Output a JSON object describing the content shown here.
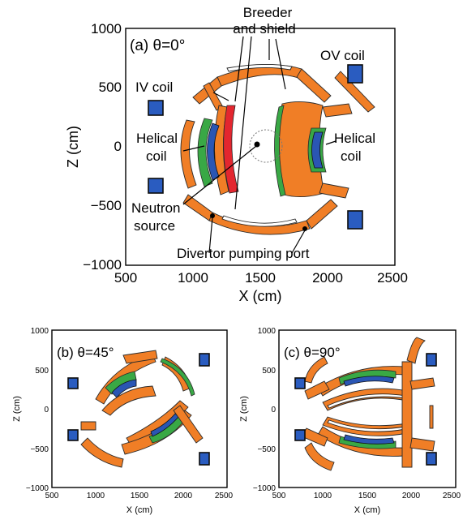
{
  "panels": [
    {
      "title": "(a) θ=0°",
      "xlabel": "X (cm)",
      "ylabel": "Z (cm)",
      "xticks": [
        "500",
        "1000",
        "1500",
        "2000",
        "2500"
      ],
      "yticks": [
        "1000",
        "500",
        "0",
        "−500",
        "−1000"
      ]
    },
    {
      "title": "(b) θ=45°",
      "xlabel": "X (cm)",
      "ylabel": "Z (cm)",
      "xticks": [
        "500",
        "1000",
        "1500",
        "2000",
        "2500"
      ],
      "yticks": [
        "1000",
        "500",
        "0",
        "−500",
        "−1000"
      ]
    },
    {
      "title": "(c) θ=90°",
      "xlabel": "X (cm)",
      "ylabel": "Z (cm)",
      "xticks": [
        "500",
        "1000",
        "1500",
        "2000",
        "2500"
      ],
      "yticks": [
        "1000",
        "500",
        "0",
        "−500",
        "−1000"
      ]
    }
  ],
  "annotations": {
    "breeder_line1": "Breeder",
    "breeder_line2": "and shield",
    "ov_coil": "OV coil",
    "iv_coil": "IV coil",
    "helical_left_1": "Helical",
    "helical_left_2": "coil",
    "helical_right_1": "Helical",
    "helical_right_2": "coil",
    "neutron_1": "Neutron",
    "neutron_2": "source",
    "divertor": "Divertor pumping port"
  },
  "colors": {
    "blanket": "#f07e26",
    "helical_coil": "#2a56b4",
    "helical_edge": "#39a845",
    "poloidal_coil": "#2a5cc0",
    "red_module": "#e3262f"
  }
}
